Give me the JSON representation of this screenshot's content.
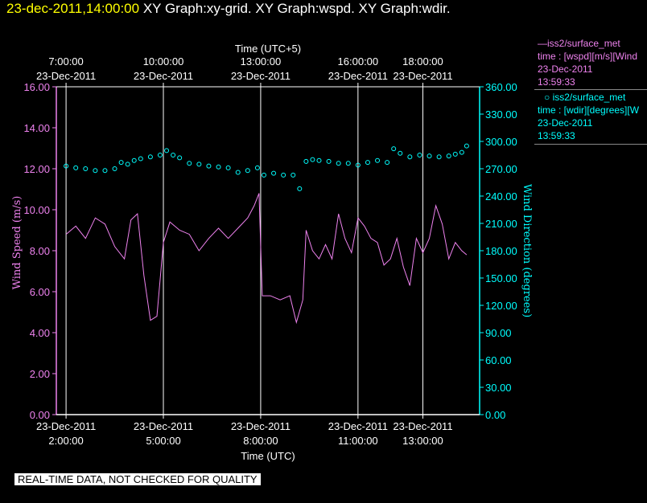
{
  "header": {
    "timestamp": "23-dec-2011,14:00:00",
    "titles": "XY Graph:xy-grid.  XY Graph:wspd.  XY Graph:wdir."
  },
  "legend": {
    "series1_name": "iss2/surface_met",
    "series1_var": "time : [wspd][m/s][Wind",
    "series1_date": "23-Dec-2011",
    "series1_time": "13:59:33",
    "series2_name": "iss2/surface_met",
    "series2_var": "time : [wdir][degrees][W",
    "series2_date": "23-Dec-2011",
    "series2_time": "13:59:33"
  },
  "footer": "REAL-TIME DATA, NOT CHECKED FOR QUALITY",
  "colors": {
    "wspd": "#ee82ee",
    "wdir": "#00ffff",
    "grid": "#ffffff",
    "timestamp": "#ffff00"
  },
  "chart_data": {
    "type": "line",
    "top_axis_title": "Time (UTC+5)",
    "bottom_axis_title": "Time (UTC)",
    "ylabel_left": "Wind Speed (m/s)",
    "ylabel_right": "Wind Direction (degrees)",
    "x_range_hours_utc": [
      1.7,
      14.75
    ],
    "bottom_ticks": [
      {
        "hour": 2,
        "date": "23-Dec-2011",
        "time": "2:00:00"
      },
      {
        "hour": 5,
        "date": "23-Dec-2011",
        "time": "5:00:00"
      },
      {
        "hour": 8,
        "date": "23-Dec-2011",
        "time": "8:00:00"
      },
      {
        "hour": 11,
        "date": "23-Dec-2011",
        "time": "11:00:00"
      },
      {
        "hour": 13,
        "date": "23-Dec-2011",
        "time": "13:00:00"
      }
    ],
    "top_ticks": [
      {
        "hour": 2,
        "time": "7:00:00",
        "date": "23-Dec-2011"
      },
      {
        "hour": 5,
        "time": "10:00:00",
        "date": "23-Dec-2011"
      },
      {
        "hour": 8,
        "time": "13:00:00",
        "date": "23-Dec-2011"
      },
      {
        "hour": 11,
        "time": "16:00:00",
        "date": "23-Dec-2011"
      },
      {
        "hour": 13,
        "time": "18:00:00",
        "date": "23-Dec-2011"
      }
    ],
    "left_ylim": [
      0,
      16
    ],
    "left_ticks": [
      "0.00",
      "2.00",
      "4.00",
      "6.00",
      "8.00",
      "10.00",
      "12.00",
      "14.00",
      "16.00"
    ],
    "right_ylim": [
      0,
      360
    ],
    "right_ticks": [
      "0.00",
      "30.00",
      "60.00",
      "90.00",
      "120.00",
      "150.00",
      "180.00",
      "210.00",
      "240.00",
      "270.00",
      "300.00",
      "330.00",
      "360.00"
    ],
    "grid_x_hours": [
      2,
      5,
      8,
      11,
      13
    ],
    "series": [
      {
        "name": "iss2/surface_met",
        "variable": "wspd",
        "units": "m/s",
        "style": "line",
        "points": [
          [
            2.0,
            8.8
          ],
          [
            2.3,
            9.2
          ],
          [
            2.6,
            8.6
          ],
          [
            2.9,
            9.6
          ],
          [
            3.2,
            9.3
          ],
          [
            3.5,
            8.2
          ],
          [
            3.8,
            7.6
          ],
          [
            4.0,
            9.5
          ],
          [
            4.2,
            9.8
          ],
          [
            4.4,
            6.8
          ],
          [
            4.6,
            4.6
          ],
          [
            4.8,
            4.8
          ],
          [
            5.0,
            8.4
          ],
          [
            5.2,
            9.4
          ],
          [
            5.5,
            9.0
          ],
          [
            5.8,
            8.8
          ],
          [
            6.1,
            8.0
          ],
          [
            6.4,
            8.6
          ],
          [
            6.7,
            9.1
          ],
          [
            7.0,
            8.6
          ],
          [
            7.3,
            9.1
          ],
          [
            7.6,
            9.6
          ],
          [
            7.8,
            10.2
          ],
          [
            7.95,
            10.8
          ],
          [
            8.05,
            5.8
          ],
          [
            8.3,
            5.8
          ],
          [
            8.6,
            5.6
          ],
          [
            8.9,
            5.8
          ],
          [
            9.1,
            4.5
          ],
          [
            9.3,
            5.6
          ],
          [
            9.4,
            9.0
          ],
          [
            9.6,
            8.0
          ],
          [
            9.8,
            7.6
          ],
          [
            10.0,
            8.3
          ],
          [
            10.2,
            7.6
          ],
          [
            10.4,
            9.8
          ],
          [
            10.6,
            8.6
          ],
          [
            10.8,
            7.9
          ],
          [
            11.0,
            9.6
          ],
          [
            11.2,
            9.2
          ],
          [
            11.4,
            8.6
          ],
          [
            11.6,
            8.4
          ],
          [
            11.8,
            7.3
          ],
          [
            12.0,
            7.6
          ],
          [
            12.2,
            8.6
          ],
          [
            12.4,
            7.2
          ],
          [
            12.6,
            6.3
          ],
          [
            12.8,
            8.6
          ],
          [
            13.0,
            7.9
          ],
          [
            13.2,
            8.6
          ],
          [
            13.4,
            10.2
          ],
          [
            13.6,
            9.3
          ],
          [
            13.8,
            7.6
          ],
          [
            14.0,
            8.4
          ],
          [
            14.2,
            8.0
          ],
          [
            14.35,
            7.8
          ]
        ]
      },
      {
        "name": "iss2/surface_met",
        "variable": "wdir",
        "units": "degrees",
        "style": "circles",
        "points": [
          [
            2.0,
            273
          ],
          [
            2.3,
            271
          ],
          [
            2.6,
            270
          ],
          [
            2.9,
            268
          ],
          [
            3.2,
            268
          ],
          [
            3.5,
            270
          ],
          [
            3.7,
            277
          ],
          [
            3.9,
            275
          ],
          [
            4.1,
            279
          ],
          [
            4.3,
            281
          ],
          [
            4.6,
            283
          ],
          [
            4.9,
            285
          ],
          [
            5.1,
            290
          ],
          [
            5.3,
            285
          ],
          [
            5.5,
            282
          ],
          [
            5.8,
            276
          ],
          [
            6.1,
            275
          ],
          [
            6.4,
            273
          ],
          [
            6.7,
            272
          ],
          [
            7.0,
            271
          ],
          [
            7.3,
            266
          ],
          [
            7.6,
            268
          ],
          [
            7.9,
            271
          ],
          [
            8.1,
            263
          ],
          [
            8.4,
            265
          ],
          [
            8.7,
            263
          ],
          [
            9.0,
            263
          ],
          [
            9.2,
            248
          ],
          [
            9.4,
            278
          ],
          [
            9.6,
            280
          ],
          [
            9.8,
            279
          ],
          [
            10.1,
            278
          ],
          [
            10.4,
            276
          ],
          [
            10.7,
            276
          ],
          [
            11.0,
            274
          ],
          [
            11.3,
            277
          ],
          [
            11.6,
            279
          ],
          [
            11.9,
            277
          ],
          [
            12.1,
            292
          ],
          [
            12.3,
            287
          ],
          [
            12.6,
            283
          ],
          [
            12.9,
            285
          ],
          [
            13.2,
            284
          ],
          [
            13.5,
            283
          ],
          [
            13.8,
            284
          ],
          [
            14.0,
            286
          ],
          [
            14.2,
            288
          ],
          [
            14.35,
            295
          ]
        ]
      }
    ]
  }
}
